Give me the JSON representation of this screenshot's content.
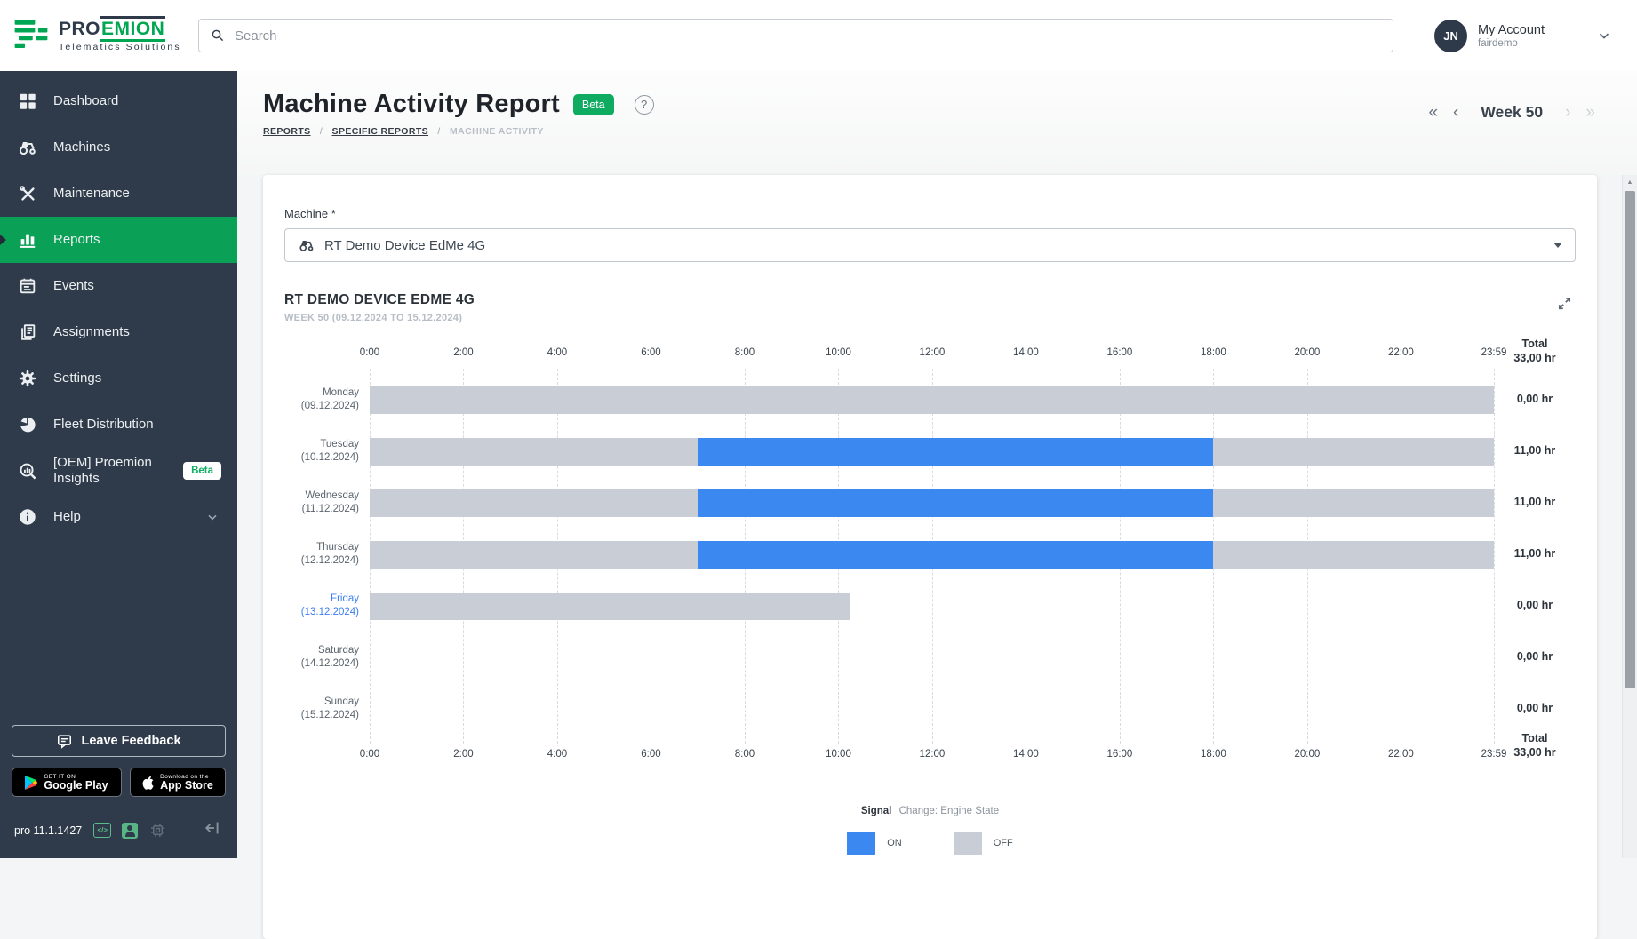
{
  "logo": {
    "brand_pro": "PRO",
    "brand_emion": "EMION",
    "tagline": "Telematics Solutions"
  },
  "topbar": {
    "search": {
      "placeholder": "Search"
    },
    "account": {
      "initials": "JN",
      "name": "My Account",
      "org": "fairdemo"
    }
  },
  "sidebar": {
    "items": [
      {
        "label": "Dashboard",
        "active": false
      },
      {
        "label": "Machines",
        "active": false
      },
      {
        "label": "Maintenance",
        "active": false
      },
      {
        "label": "Reports",
        "active": true
      },
      {
        "label": "Events",
        "active": false
      },
      {
        "label": "Assignments",
        "active": false
      },
      {
        "label": "Settings",
        "active": false
      },
      {
        "label": "Fleet Distribution",
        "active": false
      },
      {
        "label": "[OEM] Proemion Insights",
        "active": false,
        "badge": "Beta"
      },
      {
        "label": "Help",
        "active": false
      }
    ],
    "feedback_button": "Leave Feedback",
    "store_badges": {
      "google_play": {
        "line1": "GET IT ON",
        "line2": "Google Play"
      },
      "app_store": {
        "line1": "Download on the",
        "line2": "App Store"
      }
    },
    "version": "pro 11.1.1427",
    "code_glyph": "</>"
  },
  "header": {
    "title": "Machine Activity Report",
    "beta_badge": "Beta",
    "help_glyph": "?",
    "breadcrumbs": [
      "REPORTS",
      "SPECIFIC REPORTS",
      "MACHINE ACTIVITY"
    ],
    "breadcrumb_separator": "/",
    "week_nav": {
      "first": "«",
      "prev": "‹",
      "label": "Week 50",
      "next": "›",
      "last": "»"
    }
  },
  "machine_select": {
    "label": "Machine *",
    "value": "RT Demo Device EdMe 4G"
  },
  "report": {
    "title": "RT DEMO DEVICE EDME 4G",
    "subtitle": "WEEK 50 (09.12.2024 TO 15.12.2024)"
  },
  "misc": {
    "scroll_up_arrow": "▲"
  },
  "colors": {
    "brand_green": "#00a651",
    "active_item_green": "#0aa157",
    "badge_green": "#0fab61",
    "sidebar_bg": "#2f3b4a",
    "bar_on_blue": "#3a88f0",
    "bar_off_gray": "#c8cdd6",
    "friday_link_blue": "#3b7df0"
  },
  "chart_data": {
    "type": "timeline-gantt",
    "title": "RT DEMO DEVICE EDME 4G",
    "subtitle": "WEEK 50 (09.12.2024 TO 15.12.2024)",
    "x_range_hours": [
      0,
      23.983
    ],
    "x_ticks": [
      {
        "label": "0:00",
        "hour": 0
      },
      {
        "label": "2:00",
        "hour": 2
      },
      {
        "label": "4:00",
        "hour": 4
      },
      {
        "label": "6:00",
        "hour": 6
      },
      {
        "label": "8:00",
        "hour": 8
      },
      {
        "label": "10:00",
        "hour": 10
      },
      {
        "label": "12:00",
        "hour": 12
      },
      {
        "label": "14:00",
        "hour": 14
      },
      {
        "label": "16:00",
        "hour": 16
      },
      {
        "label": "18:00",
        "hour": 18
      },
      {
        "label": "20:00",
        "hour": 20
      },
      {
        "label": "22:00",
        "hour": 22
      },
      {
        "label": "23:59",
        "hour": 23.983
      }
    ],
    "total_label": "Total",
    "total_value": "33,00 hr",
    "rows": [
      {
        "day": "Monday",
        "date": "(09.12.2024)",
        "total": "0,00 hr",
        "highlight": false,
        "segments": [
          {
            "state": "OFF",
            "start": 0,
            "end": 23.983
          }
        ]
      },
      {
        "day": "Tuesday",
        "date": "(10.12.2024)",
        "total": "11,00 hr",
        "highlight": false,
        "segments": [
          {
            "state": "OFF",
            "start": 0,
            "end": 7
          },
          {
            "state": "ON",
            "start": 7,
            "end": 18
          },
          {
            "state": "OFF",
            "start": 18,
            "end": 23.983
          }
        ]
      },
      {
        "day": "Wednesday",
        "date": "(11.12.2024)",
        "total": "11,00 hr",
        "highlight": false,
        "segments": [
          {
            "state": "OFF",
            "start": 0,
            "end": 7
          },
          {
            "state": "ON",
            "start": 7,
            "end": 18
          },
          {
            "state": "OFF",
            "start": 18,
            "end": 23.983
          }
        ]
      },
      {
        "day": "Thursday",
        "date": "(12.12.2024)",
        "total": "11,00 hr",
        "highlight": false,
        "segments": [
          {
            "state": "OFF",
            "start": 0,
            "end": 7
          },
          {
            "state": "ON",
            "start": 7,
            "end": 18
          },
          {
            "state": "OFF",
            "start": 18,
            "end": 23.983
          }
        ]
      },
      {
        "day": "Friday",
        "date": "(13.12.2024)",
        "total": "0,00 hr",
        "highlight": true,
        "segments": [
          {
            "state": "OFF",
            "start": 0,
            "end": 10.25
          }
        ]
      },
      {
        "day": "Saturday",
        "date": "(14.12.2024)",
        "total": "0,00 hr",
        "highlight": false,
        "segments": []
      },
      {
        "day": "Sunday",
        "date": "(15.12.2024)",
        "total": "0,00 hr",
        "highlight": false,
        "segments": []
      }
    ],
    "legend": {
      "signal_label": "Signal",
      "signal_value": "Change: Engine State",
      "items": [
        {
          "label": "ON",
          "color": "#3a88f0"
        },
        {
          "label": "OFF",
          "color": "#c8cdd6"
        }
      ]
    }
  }
}
